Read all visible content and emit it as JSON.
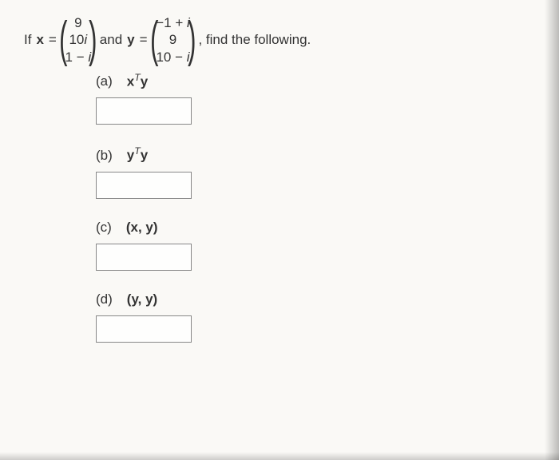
{
  "prompt": {
    "if": "If",
    "x_eq": "x",
    "eq1": " = ",
    "and": " and ",
    "y_eq": "y",
    "eq2": " = ",
    "find": ", find the following."
  },
  "vector_x": {
    "r1": "9",
    "r2": "10",
    "r2_i": "i",
    "r3": "1 − ",
    "r3_i": "i"
  },
  "vector_y": {
    "r1": "−1 + ",
    "r1_i": "i",
    "r2": "9",
    "r3": "10 − ",
    "r3_i": "i"
  },
  "parts": {
    "a": {
      "label": "(a)",
      "expr_x": "x",
      "expr_sup": "T",
      "expr_y": "y"
    },
    "b": {
      "label": "(b)",
      "expr_x": "y",
      "expr_sup": "T",
      "expr_y": "y"
    },
    "c": {
      "label": "(c)",
      "expr": "(x, y)"
    },
    "d": {
      "label": "(d)",
      "expr": "(y, y)"
    }
  }
}
